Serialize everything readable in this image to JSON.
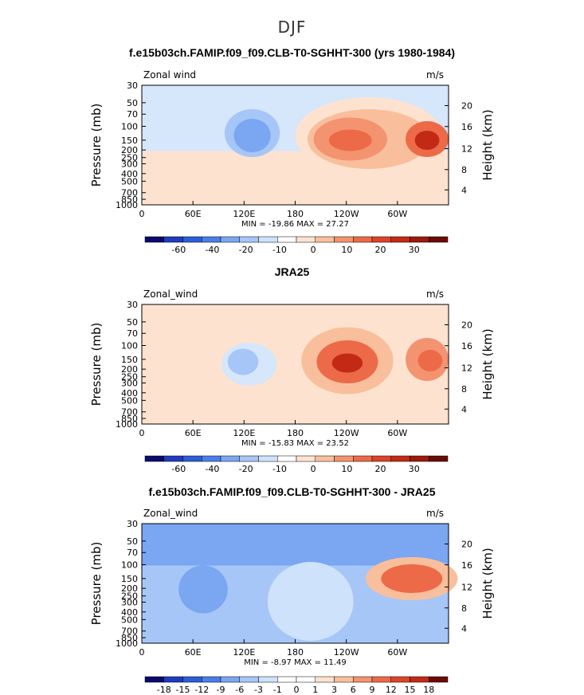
{
  "page": {
    "title": "DJF"
  },
  "chart_data": [
    {
      "type": "heatmap",
      "title": "f.e15b03ch.FAMIP.f09_f09.CLB-T0-SGHHT-300 (yrs 1980-1984)",
      "variable_label": "Zonal wind",
      "units_label": "m/s",
      "ylabel": "Pressure (mb)",
      "y2label": "Height (km)",
      "y_ticks": [
        "30",
        "50",
        "70",
        "100",
        "150",
        "200",
        "250",
        "300",
        "400",
        "500",
        "700",
        "850",
        "1000"
      ],
      "y2_ticks": [
        "20",
        "16",
        "12",
        "8",
        "4"
      ],
      "x_ticks": [
        "0",
        "60E",
        "120E",
        "180",
        "120W",
        "60W"
      ],
      "min_max_text": "MIN = -19.86   MAX = 27.27",
      "min": -19.86,
      "max": 27.27,
      "colorbar_labels": [
        "-60",
        "-40",
        "-20",
        "-10",
        "0",
        "10",
        "20",
        "30"
      ],
      "colorbar_colors": [
        "#0a0a6e",
        "#1f3bc0",
        "#2a5ed8",
        "#4a7ee8",
        "#7aa6f2",
        "#a6c6f7",
        "#cfe2fb",
        "#ffffff",
        "#fde3cf",
        "#f9bf9c",
        "#f49370",
        "#ec6a48",
        "#dd4328",
        "#c22a16",
        "#9b1a0c",
        "#6b0a06"
      ]
    },
    {
      "type": "heatmap",
      "title": "JRA25",
      "variable_label": "Zonal_wind",
      "units_label": "m/s",
      "ylabel": "Pressure (mb)",
      "y2label": "Height (km)",
      "y_ticks": [
        "30",
        "50",
        "70",
        "100",
        "150",
        "200",
        "250",
        "300",
        "400",
        "500",
        "700",
        "850",
        "1000"
      ],
      "y2_ticks": [
        "20",
        "16",
        "12",
        "8",
        "4"
      ],
      "x_ticks": [
        "0",
        "60E",
        "120E",
        "180",
        "120W",
        "60W"
      ],
      "min_max_text": "MIN = -15.83   MAX = 23.52",
      "min": -15.83,
      "max": 23.52,
      "colorbar_labels": [
        "-60",
        "-40",
        "-20",
        "-10",
        "0",
        "10",
        "20",
        "30"
      ],
      "colorbar_colors": [
        "#0a0a6e",
        "#1f3bc0",
        "#2a5ed8",
        "#4a7ee8",
        "#7aa6f2",
        "#a6c6f7",
        "#cfe2fb",
        "#ffffff",
        "#fde3cf",
        "#f9bf9c",
        "#f49370",
        "#ec6a48",
        "#dd4328",
        "#c22a16",
        "#9b1a0c",
        "#6b0a06"
      ]
    },
    {
      "type": "heatmap",
      "title": "f.e15b03ch.FAMIP.f09_f09.CLB-T0-SGHHT-300 - JRA25",
      "variable_label": "Zonal_wind",
      "units_label": "m/s",
      "ylabel": "Pressure (mb)",
      "y2label": "Height (km)",
      "y_ticks": [
        "30",
        "50",
        "70",
        "100",
        "150",
        "200",
        "250",
        "300",
        "400",
        "500",
        "700",
        "850",
        "1000"
      ],
      "y2_ticks": [
        "20",
        "16",
        "12",
        "8",
        "4"
      ],
      "x_ticks": [
        "0",
        "60E",
        "120E",
        "180",
        "120W",
        "60W"
      ],
      "min_max_text": "MIN = -8.97   MAX = 11.49",
      "min": -8.97,
      "max": 11.49,
      "colorbar_labels": [
        "-18",
        "-15",
        "-12",
        "-9",
        "-6",
        "-3",
        "-1",
        "0",
        "1",
        "3",
        "6",
        "9",
        "12",
        "15",
        "18"
      ],
      "colorbar_colors": [
        "#0a0a6e",
        "#1f3bc0",
        "#2a5ed8",
        "#4a7ee8",
        "#7aa6f2",
        "#a6c6f7",
        "#cfe2fb",
        "#ffffff",
        "#ffffff",
        "#fde3cf",
        "#f9bf9c",
        "#f49370",
        "#ec6a48",
        "#dd4328",
        "#c22a16",
        "#6b0a06"
      ]
    }
  ]
}
